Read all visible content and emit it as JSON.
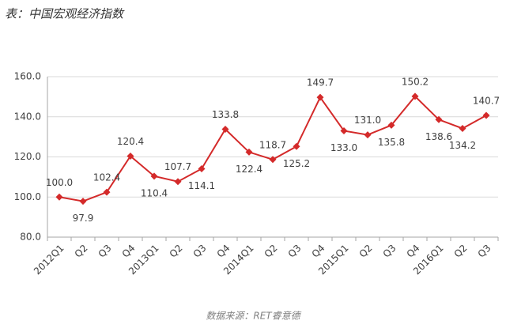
{
  "chart_data": {
    "type": "line",
    "title": "表：中国宏观经济指数",
    "source": "数据来源：RET睿意德",
    "categories": [
      "2012Q1",
      "Q2",
      "Q3",
      "Q4",
      "2013Q1",
      "Q2",
      "Q3",
      "Q4",
      "2014Q1",
      "Q2",
      "Q3",
      "Q4",
      "2015Q1",
      "Q2",
      "Q3",
      "Q4",
      "2016Q1",
      "Q2",
      "Q3"
    ],
    "values": [
      100.0,
      97.9,
      102.4,
      120.4,
      110.4,
      107.7,
      114.1,
      133.8,
      122.4,
      118.7,
      125.2,
      149.7,
      133.0,
      131.0,
      135.8,
      150.2,
      138.6,
      134.2,
      140.7
    ],
    "value_labels": [
      "100.0",
      "97.9",
      "102.4",
      "120.4",
      "110.4",
      "107.7",
      "114.1",
      "133.8",
      "122.4",
      "118.7",
      "125.2",
      "149.7",
      "133.0",
      "131.0",
      "135.8",
      "150.2",
      "138.6",
      "134.2",
      "140.7"
    ],
    "color": "#d42a2a",
    "ylim": [
      80,
      160
    ],
    "yticks": [
      {
        "value": 80,
        "label": "80.0"
      },
      {
        "value": 100,
        "label": "100.0"
      },
      {
        "value": 120,
        "label": "120.0"
      },
      {
        "value": 140,
        "label": "140.0"
      },
      {
        "value": 160,
        "label": "160.0"
      }
    ],
    "grid": true
  }
}
